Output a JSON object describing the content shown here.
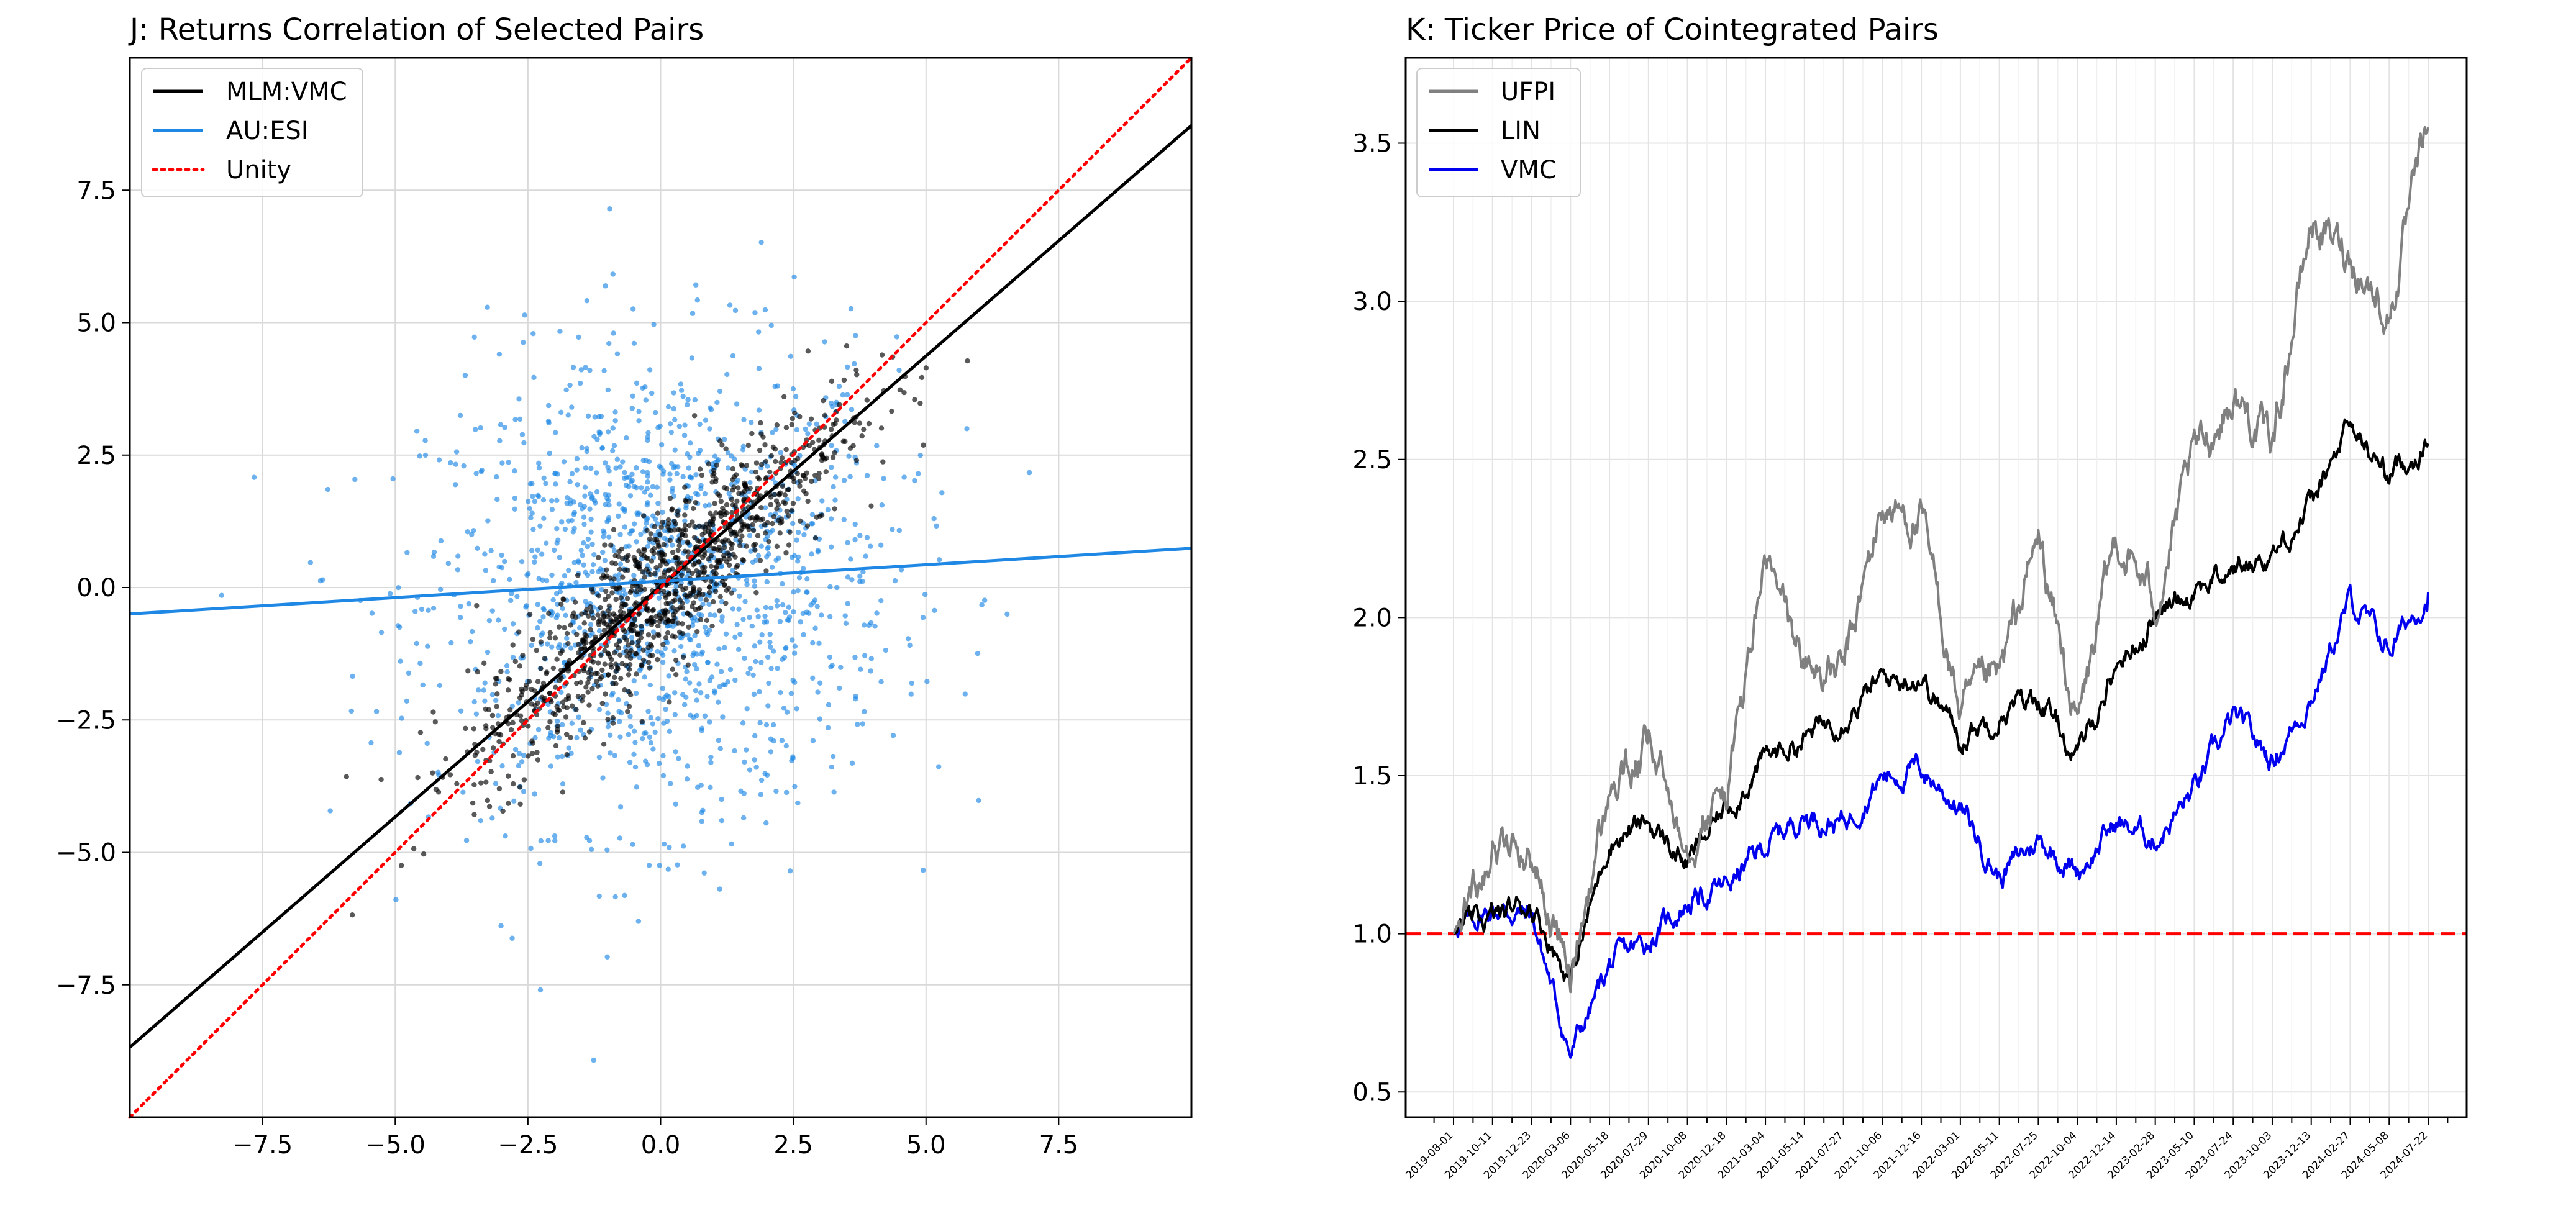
{
  "chart_data": [
    {
      "type": "scatter",
      "title": "J: Returns Correlation of Selected Pairs",
      "xlabel": "",
      "ylabel": "",
      "xlim": [
        -10,
        10
      ],
      "ylim": [
        -10,
        10
      ],
      "xticks": [
        -7.5,
        -5.0,
        -2.5,
        0.0,
        2.5,
        5.0,
        7.5
      ],
      "yticks": [
        -7.5,
        -5.0,
        -2.5,
        0.0,
        2.5,
        5.0,
        7.5
      ],
      "xtick_labels": [
        "−7.5",
        "−5.0",
        "−2.5",
        "0.0",
        "2.5",
        "5.0",
        "7.5"
      ],
      "ytick_labels": [
        "−7.5",
        "−5.0",
        "−2.5",
        "0.0",
        "2.5",
        "5.0",
        "7.5"
      ],
      "grid": true,
      "legend_position": "top-left",
      "lines": [
        {
          "name": "MLM:VMC",
          "color": "#000000",
          "style": "solid",
          "slope": 0.87,
          "intercept": 0.02
        },
        {
          "name": "AU:ESI",
          "color": "#1f88e5",
          "style": "solid",
          "slope": 0.062,
          "intercept": 0.12
        },
        {
          "name": "Unity",
          "color": "#ff0000",
          "style": "dotted",
          "slope": 1.0,
          "intercept": 0.0
        }
      ],
      "scatter_series": [
        {
          "color": "#1f88e5",
          "description_sigma": 2.2,
          "count": 1400
        },
        {
          "color": "#000000",
          "description_sigma": 1.4,
          "count": 1100
        }
      ]
    },
    {
      "type": "line",
      "title": "K: Ticker Price of Cointegrated Pairs",
      "xlabel": "",
      "ylabel": "",
      "ylim": [
        0.42,
        3.77
      ],
      "yticks": [
        0.5,
        1.0,
        1.5,
        2.0,
        2.5,
        3.0,
        3.5
      ],
      "ytick_labels": [
        "0.5",
        "1.0",
        "1.5",
        "2.0",
        "2.5",
        "3.0",
        "3.5"
      ],
      "xtick_labels": [
        "2019-08-01",
        "2019-10-11",
        "2019-12-23",
        "2020-03-06",
        "2020-05-18",
        "2020-07-29",
        "2020-10-08",
        "2020-12-18",
        "2021-03-04",
        "2021-05-14",
        "2021-07-27",
        "2021-10-06",
        "2021-12-16",
        "2022-03-01",
        "2022-05-11",
        "2022-07-25",
        "2022-10-04",
        "2022-12-14",
        "2023-02-28",
        "2023-05-10",
        "2023-07-24",
        "2023-10-03",
        "2023-12-13",
        "2024-02-27",
        "2024-05-08",
        "2024-07-22"
      ],
      "grid": true,
      "legend_position": "top-left",
      "reference_line": {
        "y": 1.0,
        "color": "#ff0000",
        "style": "dashed"
      },
      "series": [
        {
          "name": "UFPI",
          "color": "#808080",
          "x": [
            "2019-08-01",
            "2019-10-11",
            "2019-12-23",
            "2020-03-06",
            "2020-05-18",
            "2020-07-29",
            "2020-10-08",
            "2020-12-18",
            "2021-03-04",
            "2021-05-14",
            "2021-07-27",
            "2021-10-06",
            "2021-12-16",
            "2022-03-01",
            "2022-05-11",
            "2022-07-25",
            "2022-10-04",
            "2022-12-14",
            "2023-02-28",
            "2023-05-10",
            "2023-07-24",
            "2023-10-03",
            "2023-12-13",
            "2024-02-27",
            "2024-05-08",
            "2024-07-22"
          ],
          "values": [
            1.0,
            1.29,
            1.25,
            0.86,
            1.45,
            1.58,
            1.32,
            1.45,
            2.18,
            1.85,
            1.82,
            2.35,
            2.3,
            1.7,
            1.8,
            2.25,
            1.65,
            2.25,
            2.05,
            2.5,
            2.7,
            2.55,
            3.25,
            3.15,
            2.95,
            3.55
          ]
        },
        {
          "name": "LIN",
          "color": "#000000",
          "x": [
            "2019-08-01",
            "2019-10-11",
            "2019-12-23",
            "2020-03-06",
            "2020-05-18",
            "2020-07-29",
            "2020-10-08",
            "2020-12-18",
            "2021-03-04",
            "2021-05-14",
            "2021-07-27",
            "2021-10-06",
            "2021-12-16",
            "2022-03-01",
            "2022-05-11",
            "2022-07-25",
            "2022-10-04",
            "2022-12-14",
            "2023-02-28",
            "2023-05-10",
            "2023-07-24",
            "2023-10-03",
            "2023-12-13",
            "2024-02-27",
            "2024-05-08",
            "2024-07-22"
          ],
          "values": [
            1.0,
            1.05,
            1.1,
            0.85,
            1.3,
            1.35,
            1.22,
            1.4,
            1.55,
            1.62,
            1.7,
            1.8,
            1.82,
            1.62,
            1.7,
            1.75,
            1.55,
            1.85,
            2.0,
            2.1,
            2.15,
            2.2,
            2.35,
            2.6,
            2.45,
            2.55
          ]
        },
        {
          "name": "VMC",
          "color": "#0000ee",
          "x": [
            "2019-08-01",
            "2019-10-11",
            "2019-12-23",
            "2020-03-06",
            "2020-05-18",
            "2020-07-29",
            "2020-10-08",
            "2020-12-18",
            "2021-03-04",
            "2021-05-14",
            "2021-07-27",
            "2021-10-06",
            "2021-12-16",
            "2022-03-01",
            "2022-05-11",
            "2022-07-25",
            "2022-10-04",
            "2022-12-14",
            "2023-02-28",
            "2023-05-10",
            "2023-07-24",
            "2023-10-03",
            "2023-12-13",
            "2024-02-27",
            "2024-05-08",
            "2024-07-22"
          ],
          "values": [
            1.0,
            1.08,
            1.06,
            0.62,
            0.9,
            0.98,
            1.1,
            1.15,
            1.28,
            1.38,
            1.35,
            1.5,
            1.52,
            1.4,
            1.18,
            1.3,
            1.2,
            1.35,
            1.3,
            1.45,
            1.68,
            1.55,
            1.75,
            2.05,
            1.9,
            2.08
          ]
        }
      ]
    }
  ]
}
